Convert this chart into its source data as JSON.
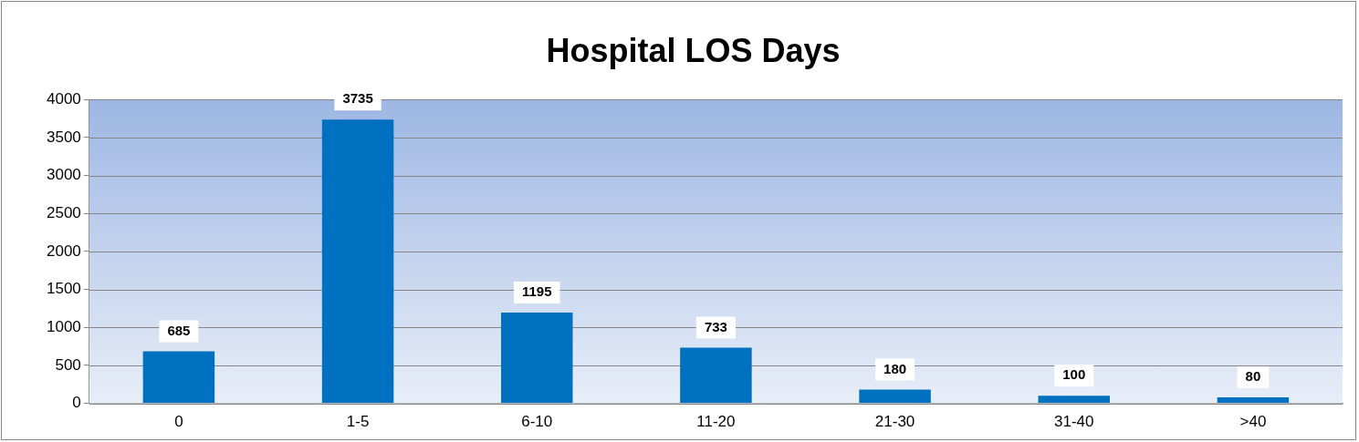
{
  "chart_data": {
    "type": "bar",
    "title": "Hospital LOS Days",
    "categories": [
      "0",
      "1-5",
      "6-10",
      "11-20",
      "21-30",
      "31-40",
      ">40"
    ],
    "values": [
      685,
      3735,
      1195,
      733,
      180,
      100,
      80
    ],
    "color": "#0070c0",
    "ylim": [
      0,
      4000
    ],
    "yticks": [
      0,
      500,
      1000,
      1500,
      2000,
      2500,
      3000,
      3500,
      4000
    ],
    "grid": "y",
    "legend": false,
    "data_labels": true
  }
}
